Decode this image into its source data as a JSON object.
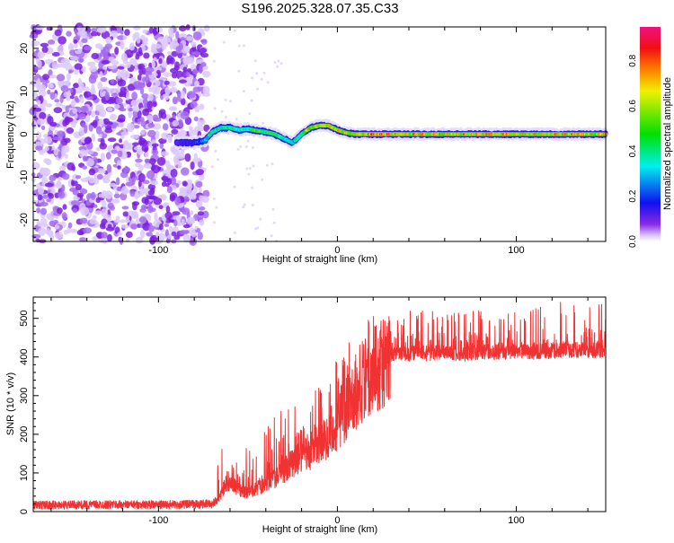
{
  "chart_data": [
    {
      "type": "heatmap",
      "title": "S196.2025.328.07.35.C33",
      "xlabel": "Height of straight line (km)",
      "ylabel": "Frequency (Hz)",
      "xlim": [
        -170,
        150
      ],
      "ylim": [
        -25,
        25
      ],
      "xticks": [
        -100,
        0,
        100
      ],
      "yticks": [
        -20,
        -10,
        0,
        10,
        20
      ],
      "colorbar": {
        "label": "Normalized spectral amplitude",
        "range": [
          0,
          0.95
        ],
        "ticks": [
          "0.0",
          "0.2",
          "0.4",
          "0.6",
          "0.8"
        ]
      },
      "noise_region_x": [
        -170,
        -73
      ],
      "ridge": {
        "x": [
          -90,
          -80,
          -74,
          -70,
          -65,
          -60,
          -55,
          -50,
          -45,
          -40,
          -35,
          -30,
          -25,
          -20,
          -15,
          -10,
          -5,
          0,
          5,
          10,
          20,
          40,
          60,
          80,
          100,
          120,
          140,
          150
        ],
        "freq": [
          -2,
          -2,
          -1.5,
          0.5,
          1.5,
          1.5,
          1,
          1.2,
          0.8,
          0.5,
          0,
          -1,
          -2,
          0,
          1.5,
          2,
          2,
          1,
          0.3,
          0,
          0,
          0,
          0,
          0,
          0,
          0,
          0,
          0
        ],
        "amplitude": [
          0.15,
          0.2,
          0.35,
          0.5,
          0.45,
          0.55,
          0.5,
          0.5,
          0.6,
          0.55,
          0.6,
          0.5,
          0.4,
          0.55,
          0.8,
          0.85,
          0.85,
          0.8,
          0.75,
          0.85,
          0.9,
          0.85,
          0.8,
          0.85,
          0.8,
          0.85,
          0.8,
          0.75
        ]
      }
    },
    {
      "type": "line",
      "title": "",
      "xlabel": "Height of straight line (km)",
      "ylabel": "SNR (10 * v/v)",
      "xlim": [
        -170,
        150
      ],
      "ylim": [
        0,
        555
      ],
      "xticks": [
        -100,
        0,
        100
      ],
      "yticks": [
        0,
        100,
        200,
        300,
        400,
        500
      ],
      "color": "#f03232",
      "series": [
        {
          "name": "SNR",
          "x": [
            -170,
            -150,
            -130,
            -110,
            -90,
            -70,
            -66,
            -62,
            -58,
            -54,
            -50,
            -46,
            -42,
            -38,
            -34,
            -30,
            -26,
            -22,
            -18,
            -14,
            -10,
            -6,
            -2,
            2,
            6,
            10,
            14,
            18,
            22,
            26,
            30,
            40,
            50,
            60,
            70,
            80,
            90,
            100,
            110,
            120,
            130,
            140,
            150
          ],
          "y": [
            17,
            17,
            18,
            18,
            18,
            20,
            35,
            80,
            70,
            55,
            50,
            60,
            70,
            80,
            90,
            110,
            130,
            140,
            150,
            165,
            180,
            200,
            220,
            250,
            280,
            310,
            340,
            365,
            385,
            395,
            405,
            410,
            412,
            415,
            410,
            415,
            415,
            418,
            415,
            418,
            420,
            420,
            420
          ],
          "spike_max": [
            35,
            40,
            40,
            40,
            40,
            35,
            160,
            170,
            130,
            150,
            180,
            250,
            200,
            280,
            250,
            300,
            310,
            280,
            300,
            320,
            350,
            360,
            380,
            410,
            440,
            460,
            490,
            500,
            510,
            510,
            515,
            520,
            520,
            520,
            530,
            520,
            520,
            525,
            530,
            540,
            545,
            540,
            540
          ]
        }
      ]
    }
  ]
}
